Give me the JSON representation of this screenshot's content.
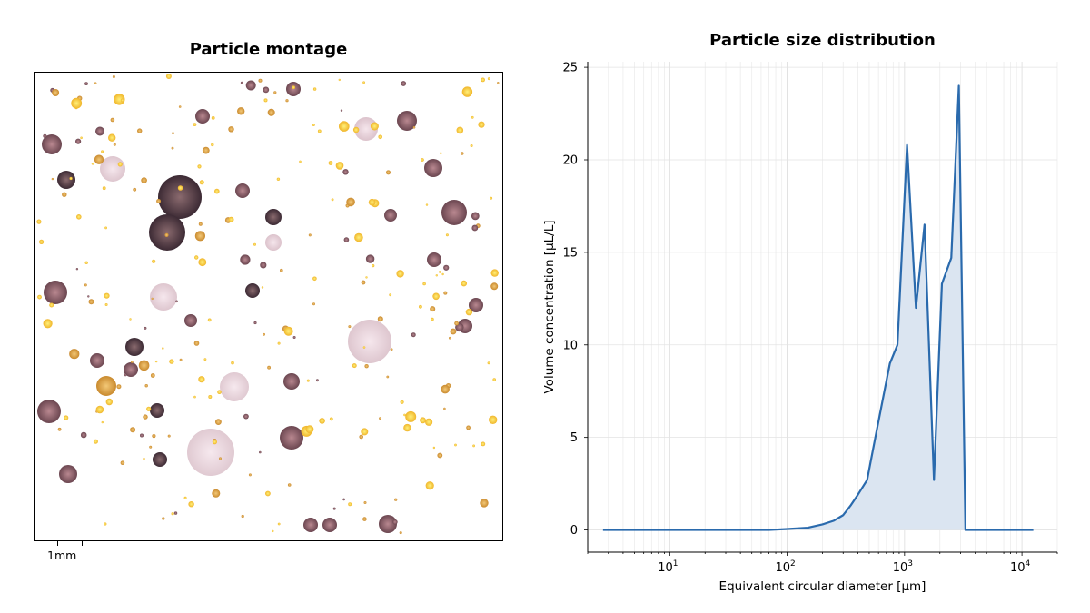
{
  "montage": {
    "title": "Particle montage",
    "scale_bar_label": "1mm"
  },
  "chart_data": {
    "type": "area",
    "title": "Particle size distribution",
    "xlabel": "Equivalent circular diameter [µm]",
    "ylabel": "Volume concentration [µL/L]",
    "xscale": "log",
    "xlim": [
      2,
      20000
    ],
    "ylim": [
      -1.2,
      25.3
    ],
    "grid": true,
    "x_ticks": [
      10,
      100,
      1000,
      10000
    ],
    "x_tick_labels": [
      "10^1",
      "10^2",
      "10^3",
      "10^4"
    ],
    "y_ticks": [
      0,
      5,
      10,
      15,
      20,
      25
    ],
    "series": [
      {
        "color": "#2a6aad",
        "fill": "#dbe5f1",
        "x": [
          2.7,
          5,
          10,
          20,
          40,
          70,
          100,
          150,
          200,
          250,
          300,
          350,
          400,
          480,
          560,
          650,
          750,
          870,
          1050,
          1250,
          1480,
          1780,
          2080,
          2500,
          2900,
          3300,
          4000,
          6000,
          9000,
          12500
        ],
        "y": [
          0,
          0,
          0,
          0,
          0,
          0,
          0.05,
          0.12,
          0.3,
          0.5,
          0.8,
          1.35,
          1.9,
          2.7,
          4.9,
          7.0,
          9.0,
          10.0,
          20.8,
          12.0,
          16.5,
          2.7,
          13.3,
          14.7,
          24.0,
          0,
          0,
          0,
          0,
          0
        ]
      }
    ]
  }
}
